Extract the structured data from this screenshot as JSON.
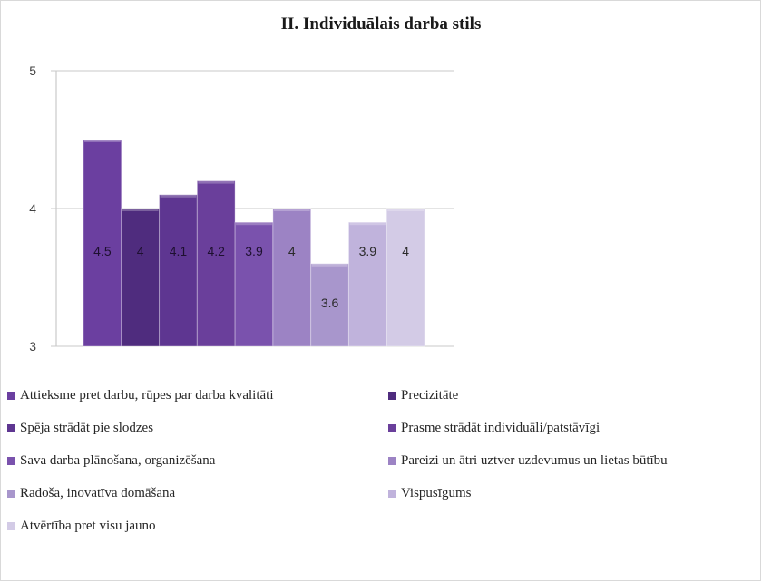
{
  "chart_data": {
    "type": "bar",
    "title": "II. Individuālais darba stils",
    "ylim": [
      3,
      5
    ],
    "yticks": [
      3,
      4,
      5
    ],
    "grid": true,
    "legend_position": "bottom",
    "series": [
      {
        "name": "Attieksme pret darbu, rūpes par darba kvalitāti",
        "value": 4.5,
        "label": "4.5",
        "color": "#6b3fa0"
      },
      {
        "name": "Precizitāte",
        "value": 4.0,
        "label": "4",
        "color": "#4f2c7e"
      },
      {
        "name": "Spēja strādāt pie slodzes",
        "value": 4.1,
        "label": "4.1",
        "color": "#5e3691"
      },
      {
        "name": "Prasme strādāt individuāli/patstāvīgi",
        "value": 4.2,
        "label": "4.2",
        "color": "#6a3f9b"
      },
      {
        "name": "Sava darba plānošana, organizēšana",
        "value": 3.9,
        "label": "3.9",
        "color": "#7a52ad"
      },
      {
        "name": "Pareizi un ātri uztver uzdevumus un lietas būtību",
        "value": 4.0,
        "label": "4",
        "color": "#9c83c4"
      },
      {
        "name": "Radoša, inovatīva domāšana",
        "value": 3.6,
        "label": "3.6",
        "color": "#a896cc"
      },
      {
        "name": "Vispusīgums",
        "value": 3.9,
        "label": "3.9",
        "color": "#c0b3dc"
      },
      {
        "name": "Atvērtība pret visu jauno",
        "value": 4.0,
        "label": "4",
        "color": "#d3cbe6"
      }
    ]
  }
}
